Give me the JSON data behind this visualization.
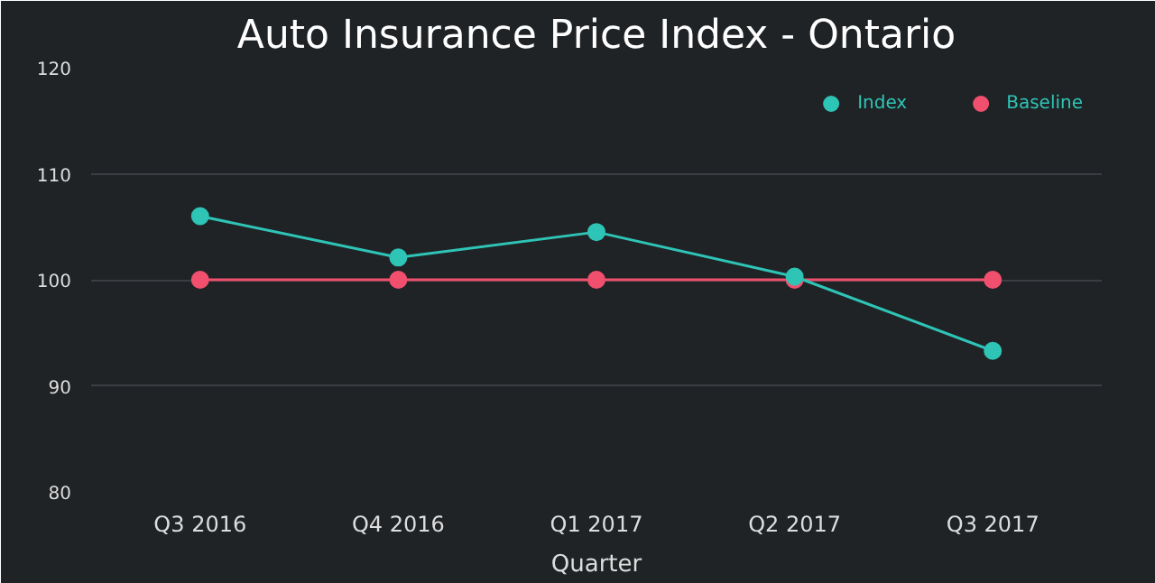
{
  "chart_data": {
    "type": "line",
    "title": "Auto Insurance Price Index - Ontario",
    "xlabel": "Quarter",
    "categories": [
      "Q3 2016",
      "Q4 2016",
      "Q1 2017",
      "Q2 2017",
      "Q3 2017"
    ],
    "series": [
      {
        "name": "Index",
        "color": "#2ec4b6",
        "values": [
          106.0,
          102.1,
          104.5,
          100.3,
          93.3
        ]
      },
      {
        "name": "Baseline",
        "color": "#f0506e",
        "values": [
          100,
          100,
          100,
          100,
          100
        ]
      }
    ],
    "ylim": [
      80,
      120
    ],
    "yticks": [
      80,
      90,
      100,
      110,
      120
    ],
    "grid": "y",
    "legend": "top right",
    "marker": "circle"
  }
}
